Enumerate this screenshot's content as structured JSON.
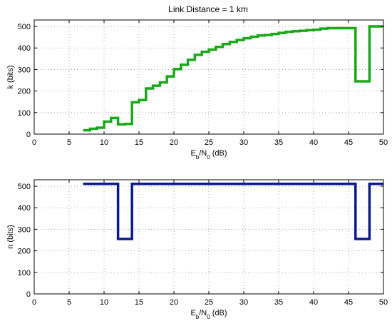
{
  "figure": {
    "title": "Link Distance = 1 km"
  },
  "chart_data": [
    {
      "type": "line",
      "step": true,
      "title": "Link Distance = 1 km",
      "xlabel": {
        "base": "E",
        "sub1": "b",
        "mid": "/N",
        "sub2": "0",
        "tail": " (dB)"
      },
      "ylabel": "k (bits)",
      "xlim": [
        0,
        50
      ],
      "ylim": [
        0,
        530
      ],
      "xticks": [
        0,
        5,
        10,
        15,
        20,
        25,
        30,
        35,
        40,
        45,
        50
      ],
      "yticks": [
        0,
        100,
        200,
        300,
        400,
        500
      ],
      "grid": true,
      "series": [
        {
          "color": "#1aa81a",
          "x": [
            7,
            8,
            9,
            10,
            11,
            12,
            13,
            14,
            15,
            16,
            17,
            18,
            19,
            20,
            21,
            22,
            23,
            24,
            25,
            26,
            27,
            28,
            29,
            30,
            31,
            32,
            33,
            34,
            35,
            36,
            37,
            38,
            39,
            40,
            41,
            42,
            43,
            44,
            45,
            46,
            47,
            48,
            49,
            50
          ],
          "y": [
            18,
            25,
            30,
            58,
            75,
            45,
            47,
            148,
            158,
            212,
            225,
            240,
            268,
            302,
            322,
            345,
            368,
            382,
            392,
            405,
            418,
            428,
            437,
            445,
            452,
            458,
            460,
            465,
            470,
            475,
            478,
            480,
            483,
            485,
            490,
            492,
            492,
            492,
            492,
            245,
            245,
            500,
            500,
            500
          ]
        }
      ]
    },
    {
      "type": "line",
      "step": true,
      "xlabel": {
        "base": "E",
        "sub1": "b",
        "mid": "/N",
        "sub2": "0",
        "tail": " (dB)"
      },
      "ylabel": "n (bits)",
      "xlim": [
        0,
        50
      ],
      "ylim": [
        0,
        530
      ],
      "xticks": [
        0,
        5,
        10,
        15,
        20,
        25,
        30,
        35,
        40,
        45,
        50
      ],
      "yticks": [
        0,
        100,
        200,
        300,
        400,
        500
      ],
      "grid": true,
      "series": [
        {
          "color": "#0a1a8c",
          "x": [
            7,
            12,
            14,
            46,
            48,
            50
          ],
          "y": [
            511,
            255,
            511,
            255,
            511,
            511
          ]
        }
      ]
    }
  ]
}
